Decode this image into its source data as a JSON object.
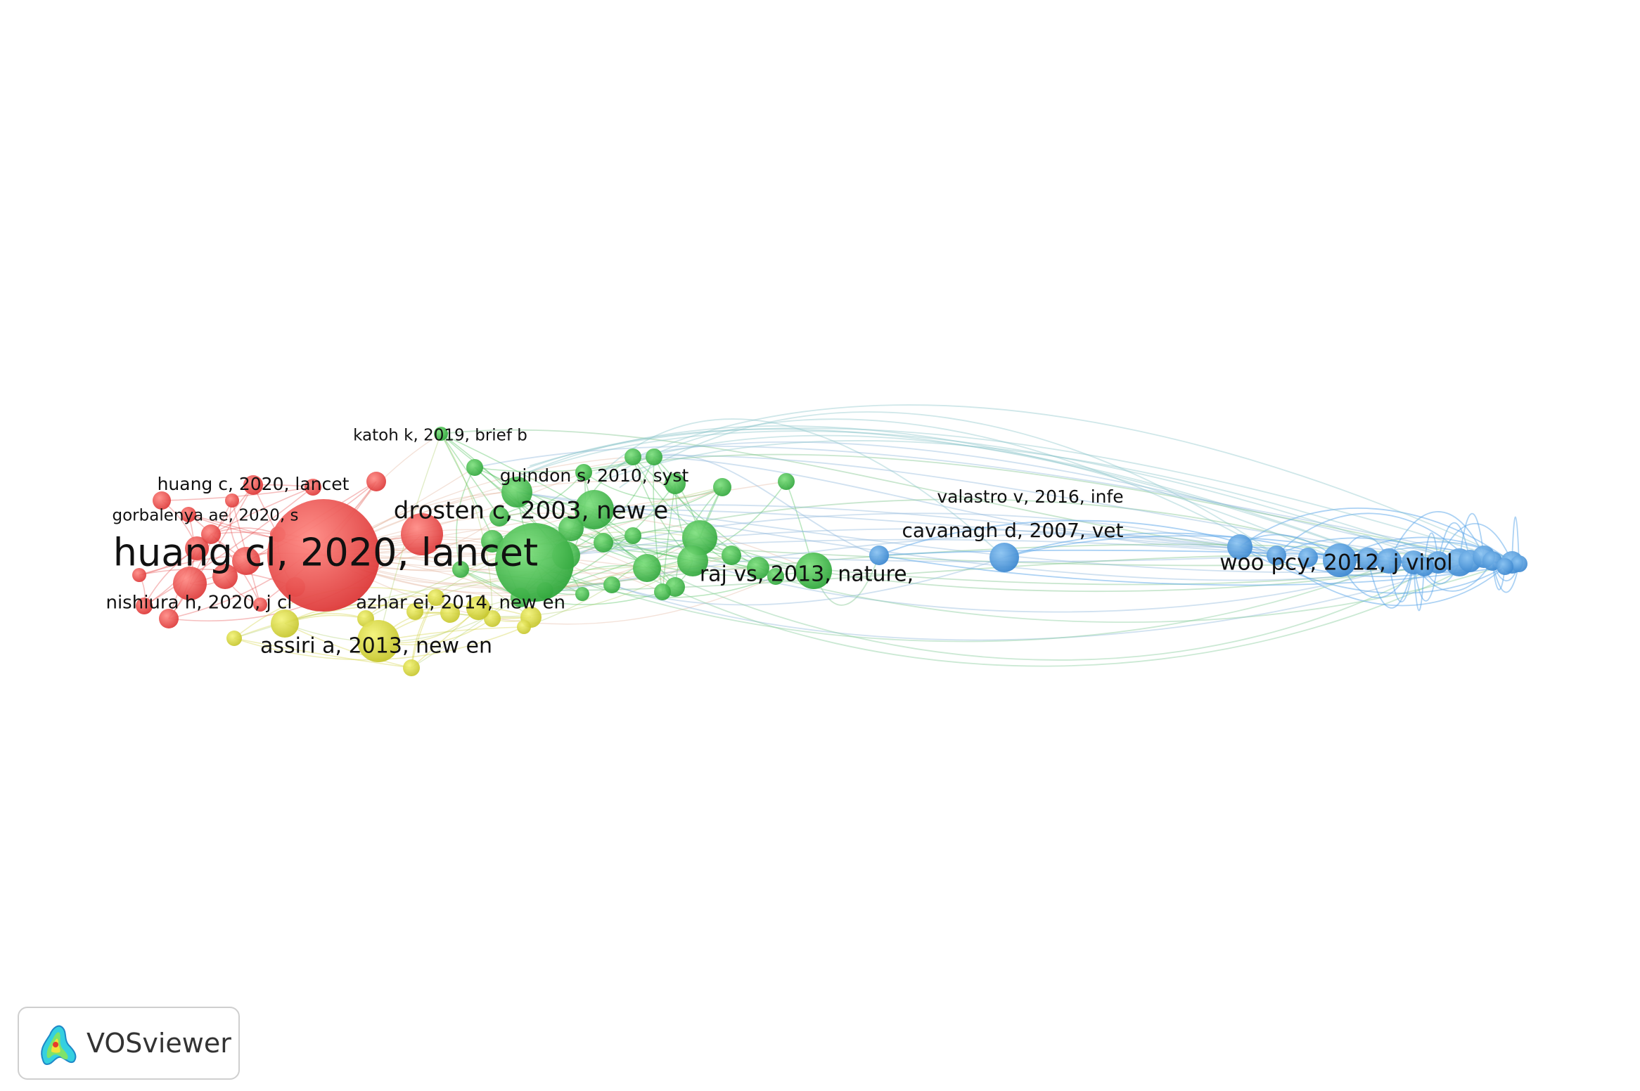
{
  "app": {
    "name": "VOSviewer"
  },
  "colors": {
    "cluster1": "#e64545",
    "cluster2": "#3cb94a",
    "cluster3": "#4a96dc",
    "cluster4": "#cfcf35",
    "label": "#111111"
  },
  "nodes": [
    {
      "id": "n01",
      "cluster": 1,
      "weight": 10.0,
      "label": "huang cl, 2020, lancet"
    },
    {
      "id": "n02",
      "cluster": 1,
      "weight": 2.2,
      "label": "huang c, 2020, lancet"
    },
    {
      "id": "n03",
      "cluster": 1,
      "weight": 1.4,
      "label": "gorbalenya ae, 2020, s"
    },
    {
      "id": "n04",
      "cluster": 1,
      "weight": 1.4,
      "label": "nishiura h, 2020, j cl"
    },
    {
      "id": "n05",
      "cluster": 2,
      "weight": 6.0,
      "label": "drosten c, 2003, new e"
    },
    {
      "id": "n06",
      "cluster": 2,
      "weight": 1.2,
      "label": "katoh k, 2019, brief b"
    },
    {
      "id": "n07",
      "cluster": 2,
      "weight": 1.4,
      "label": "guindon s, 2010, syst"
    },
    {
      "id": "n08",
      "cluster": 2,
      "weight": 2.8,
      "label": "raj vs, 2013, nature,"
    },
    {
      "id": "n09",
      "cluster": 4,
      "weight": 3.2,
      "label": "assiri a, 2013, new en"
    },
    {
      "id": "n10",
      "cluster": 4,
      "weight": 1.5,
      "label": "azhar ei, 2014, new en"
    },
    {
      "id": "n11",
      "cluster": 3,
      "weight": 1.2,
      "label": "valastro v, 2016, infe"
    },
    {
      "id": "n12",
      "cluster": 3,
      "weight": 2.0,
      "label": "cavanagh d, 2007, vet"
    },
    {
      "id": "n13",
      "cluster": 3,
      "weight": 2.6,
      "label": "woo pcy, 2012, j virol"
    }
  ]
}
